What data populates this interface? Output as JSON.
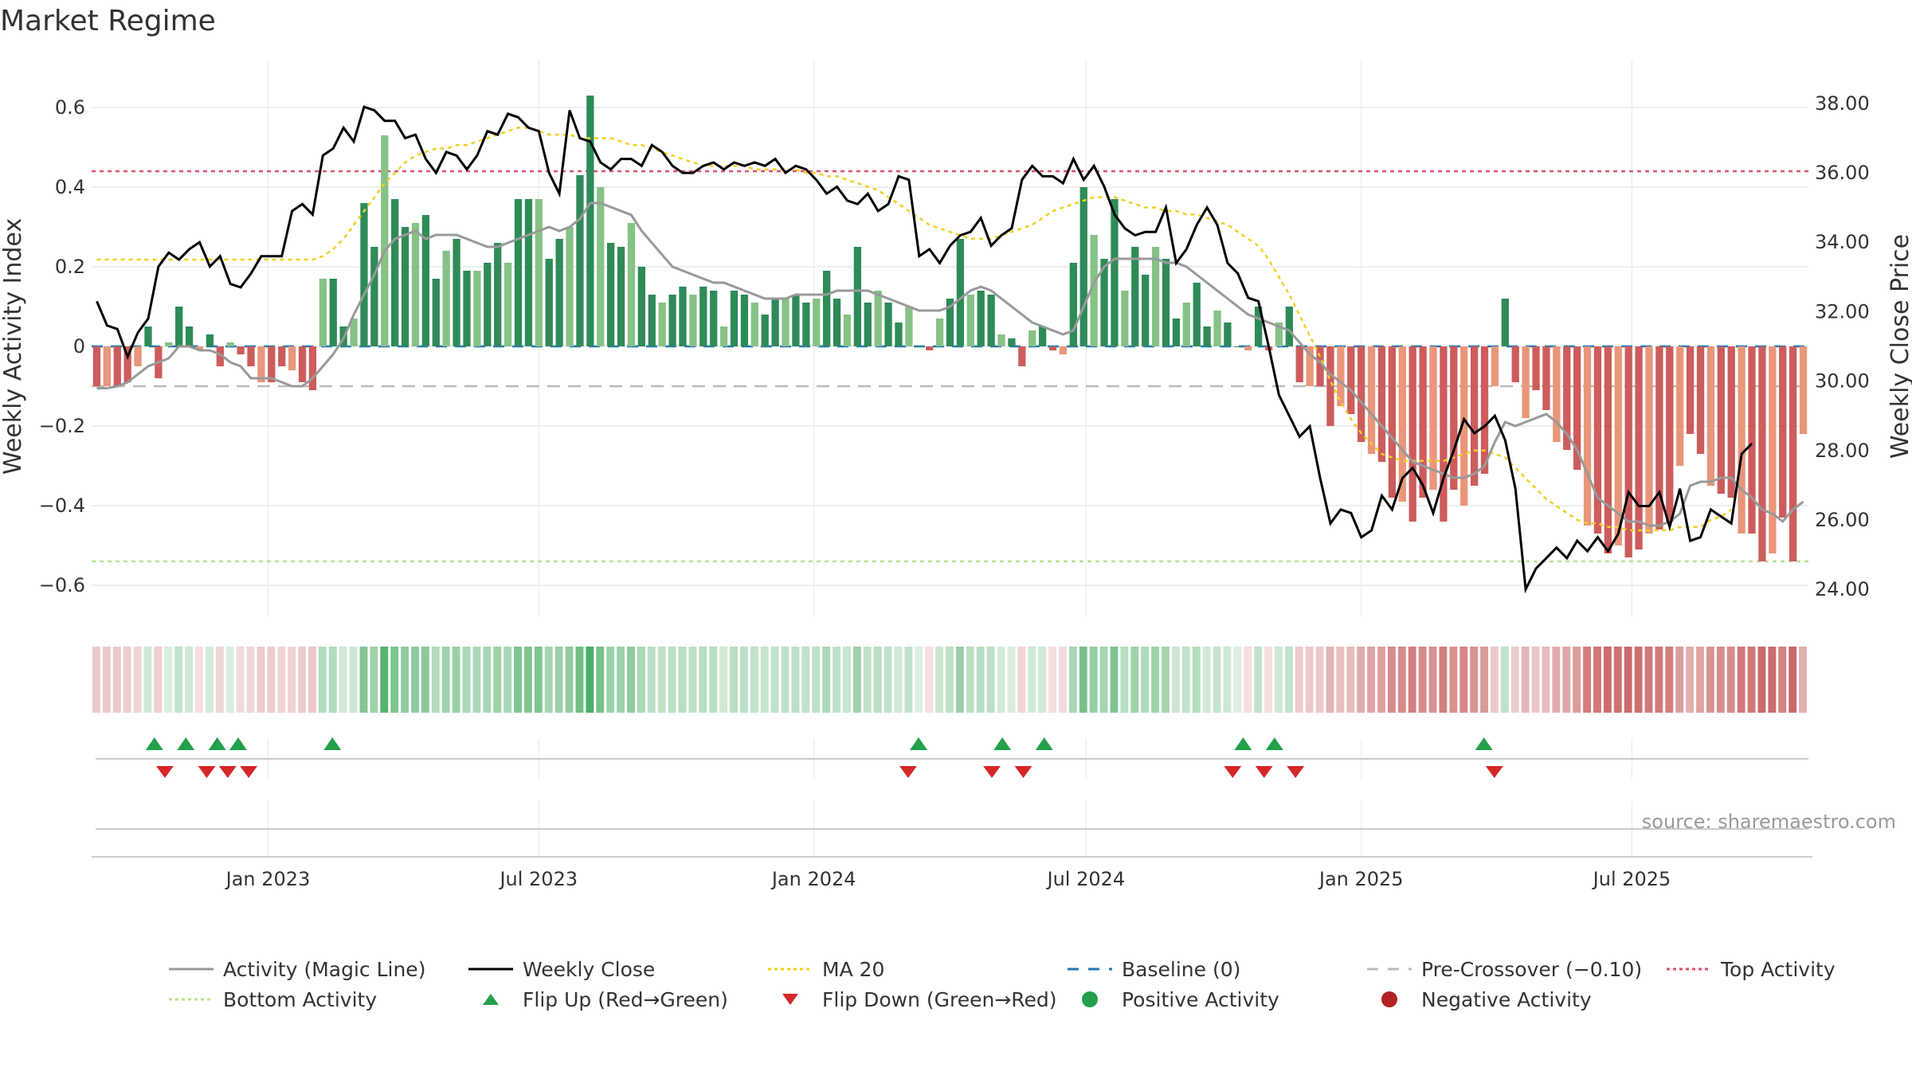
{
  "title": "Market Regime",
  "source_text": "source: sharemaestro.com",
  "colors": {
    "activity_line": "#999999",
    "weekly_close": "#000000",
    "ma20": "#f0d020",
    "baseline": "#1f77b4",
    "pre_crossover": "#bbbbbb",
    "top_activity": "#e05070",
    "bottom_activity": "#b8e08a",
    "bar_strong_green": "#2e8b57",
    "bar_light_green": "#86c286",
    "bar_strong_red": "#cd5c5c",
    "bar_light_red": "#e9967a",
    "flip_up": "#22a04b",
    "flip_down": "#d62728",
    "positive": "#22a04b",
    "negative": "#b22222"
  },
  "legend": [
    {
      "label": "Activity (Magic Line)",
      "symbol": "line-solid",
      "color": "#999999"
    },
    {
      "label": "Weekly Close",
      "symbol": "line-solid",
      "color": "#000000"
    },
    {
      "label": "MA 20",
      "symbol": "line-dotted",
      "color": "#f0d020"
    },
    {
      "label": "Baseline (0)",
      "symbol": "line-dashed",
      "color": "#1f77b4"
    },
    {
      "label": "Pre-Crossover (−0.10)",
      "symbol": "line-dashed",
      "color": "#bbbbbb"
    },
    {
      "label": "Top Activity",
      "symbol": "line-dotted",
      "color": "#e05070"
    },
    {
      "label": "Bottom Activity",
      "symbol": "line-dotted",
      "color": "#b8e08a"
    },
    {
      "label": "Flip Up (Red→Green)",
      "symbol": "triangle-up",
      "color": "#22a04b"
    },
    {
      "label": "Flip Down (Green→Red)",
      "symbol": "triangle-down",
      "color": "#d62728"
    },
    {
      "label": "Positive Activity",
      "symbol": "circle",
      "color": "#22a04b"
    },
    {
      "label": "Negative Activity",
      "symbol": "circle",
      "color": "#b22222"
    }
  ],
  "chart_data": {
    "type": "bar",
    "title": "Market Regime",
    "ylabel_left": "Weekly Activity Index",
    "ylabel_right": "Weekly Close Price",
    "ylim_left": [
      -0.68,
      0.68
    ],
    "ylim_right": [
      23.2,
      38.8
    ],
    "yticks_left": [
      "0.6",
      "0.4",
      "0.2",
      "0",
      "−0.2",
      "−0.4",
      "−0.6"
    ],
    "yticks_left_values": [
      0.6,
      0.4,
      0.2,
      0,
      -0.2,
      -0.4,
      -0.6
    ],
    "yticks_right": [
      "38.00",
      "36.00",
      "34.00",
      "32.00",
      "30.00",
      "28.00",
      "26.00",
      "24.00"
    ],
    "yticks_right_values": [
      38,
      36,
      34,
      32,
      30,
      28,
      26,
      24
    ],
    "x_start": "2022-09-05",
    "x_end": "2025-10-27",
    "xticks": [
      "Jan 2023",
      "Jul 2023",
      "Jan 2024",
      "Jul 2024",
      "Jan 2025",
      "Jul 2025"
    ],
    "xticks_dates": [
      "2023-01-01",
      "2023-07-01",
      "2024-01-01",
      "2024-07-01",
      "2025-01-01",
      "2025-07-01"
    ],
    "reference_lines": {
      "baseline": 0,
      "pre_crossover": -0.1,
      "top_activity": 0.44,
      "bottom_activity": -0.54
    },
    "activity_index": [
      -0.1,
      -0.1,
      -0.1,
      -0.09,
      -0.05,
      0.05,
      -0.08,
      0.01,
      0.1,
      0.05,
      -0.01,
      0.03,
      -0.05,
      0.01,
      -0.02,
      -0.05,
      -0.09,
      -0.09,
      -0.05,
      -0.06,
      -0.09,
      -0.11,
      0.17,
      0.17,
      0.05,
      0.07,
      0.36,
      0.25,
      0.53,
      0.37,
      0.3,
      0.31,
      0.33,
      0.17,
      0.24,
      0.27,
      0.19,
      0.19,
      0.21,
      0.26,
      0.21,
      0.37,
      0.37,
      0.37,
      0.22,
      0.27,
      0.3,
      0.43,
      0.63,
      0.4,
      0.26,
      0.25,
      0.31,
      0.2,
      0.13,
      0.11,
      0.13,
      0.15,
      0.13,
      0.15,
      0.14,
      0.05,
      0.14,
      0.13,
      0.11,
      0.08,
      0.12,
      0.12,
      0.13,
      0.11,
      0.12,
      0.19,
      0.12,
      0.08,
      0.25,
      0.11,
      0.14,
      0.11,
      0.06,
      0.1,
      0.0,
      -0.01,
      0.07,
      0.12,
      0.27,
      0.13,
      0.14,
      0.13,
      0.03,
      0.02,
      -0.05,
      0.04,
      0.05,
      -0.01,
      -0.02,
      0.21,
      0.4,
      0.28,
      0.22,
      0.37,
      0.14,
      0.25,
      0.18,
      0.25,
      0.22,
      0.07,
      0.11,
      0.16,
      0.05,
      0.09,
      0.06,
      0.0,
      -0.01,
      0.1,
      -0.01,
      0.06,
      0.1,
      -0.09,
      -0.1,
      -0.1,
      -0.2,
      -0.15,
      -0.17,
      -0.24,
      -0.27,
      -0.29,
      -0.38,
      -0.39,
      -0.44,
      -0.38,
      -0.36,
      -0.44,
      -0.36,
      -0.4,
      -0.35,
      -0.32,
      -0.1,
      0.12,
      -0.09,
      -0.18,
      -0.11,
      -0.16,
      -0.24,
      -0.26,
      -0.31,
      -0.45,
      -0.47,
      -0.52,
      -0.5,
      -0.53,
      -0.51,
      -0.47,
      -0.46,
      -0.44,
      -0.3,
      -0.22,
      -0.27,
      -0.35,
      -0.37,
      -0.38,
      -0.47,
      -0.47,
      -0.54,
      -0.52,
      -0.43,
      -0.54,
      -0.22
    ],
    "activity_line": [
      -0.105,
      -0.105,
      -0.1,
      -0.09,
      -0.07,
      -0.05,
      -0.04,
      -0.03,
      0.0,
      0.0,
      -0.01,
      -0.01,
      -0.02,
      -0.04,
      -0.05,
      -0.08,
      -0.08,
      -0.08,
      -0.09,
      -0.1,
      -0.1,
      -0.08,
      -0.05,
      -0.02,
      0.02,
      0.08,
      0.13,
      0.18,
      0.24,
      0.27,
      0.28,
      0.29,
      0.27,
      0.28,
      0.28,
      0.28,
      0.27,
      0.26,
      0.25,
      0.25,
      0.26,
      0.27,
      0.28,
      0.29,
      0.3,
      0.29,
      0.3,
      0.32,
      0.36,
      0.36,
      0.35,
      0.34,
      0.33,
      0.29,
      0.26,
      0.23,
      0.2,
      0.19,
      0.18,
      0.17,
      0.16,
      0.16,
      0.15,
      0.14,
      0.13,
      0.12,
      0.12,
      0.12,
      0.13,
      0.13,
      0.13,
      0.13,
      0.14,
      0.14,
      0.14,
      0.14,
      0.13,
      0.12,
      0.11,
      0.1,
      0.09,
      0.09,
      0.09,
      0.1,
      0.12,
      0.14,
      0.15,
      0.14,
      0.12,
      0.1,
      0.08,
      0.06,
      0.05,
      0.04,
      0.03,
      0.04,
      0.1,
      0.16,
      0.2,
      0.22,
      0.22,
      0.22,
      0.22,
      0.22,
      0.21,
      0.21,
      0.2,
      0.18,
      0.16,
      0.14,
      0.12,
      0.1,
      0.08,
      0.07,
      0.06,
      0.05,
      0.04,
      0.01,
      -0.02,
      -0.04,
      -0.07,
      -0.09,
      -0.11,
      -0.14,
      -0.17,
      -0.2,
      -0.23,
      -0.26,
      -0.29,
      -0.3,
      -0.31,
      -0.32,
      -0.33,
      -0.33,
      -0.32,
      -0.3,
      -0.24,
      -0.19,
      -0.2,
      -0.19,
      -0.18,
      -0.17,
      -0.19,
      -0.22,
      -0.26,
      -0.32,
      -0.38,
      -0.4,
      -0.42,
      -0.44,
      -0.44,
      -0.45,
      -0.45,
      -0.44,
      -0.42,
      -0.35,
      -0.34,
      -0.34,
      -0.33,
      -0.33,
      -0.36,
      -0.38,
      -0.41,
      -0.42,
      -0.44,
      -0.41,
      -0.39
    ],
    "weekly_close": [
      32.3,
      31.6,
      31.5,
      30.7,
      31.4,
      31.8,
      33.3,
      33.7,
      33.5,
      33.8,
      34.0,
      33.3,
      33.6,
      32.8,
      32.7,
      33.1,
      33.6,
      33.6,
      33.6,
      34.9,
      35.1,
      34.8,
      36.5,
      36.7,
      37.3,
      36.9,
      37.9,
      37.8,
      37.5,
      37.5,
      37.0,
      37.1,
      36.4,
      36.0,
      36.6,
      36.5,
      36.1,
      36.5,
      37.2,
      37.1,
      37.7,
      37.6,
      37.3,
      37.2,
      36.0,
      35.4,
      37.8,
      37.0,
      36.9,
      36.3,
      36.1,
      36.4,
      36.4,
      36.2,
      36.8,
      36.6,
      36.2,
      36.0,
      36.0,
      36.2,
      36.3,
      36.1,
      36.3,
      36.2,
      36.3,
      36.2,
      36.4,
      36.0,
      36.2,
      36.1,
      35.8,
      35.4,
      35.6,
      35.2,
      35.1,
      35.4,
      34.9,
      35.1,
      35.9,
      35.8,
      33.6,
      33.8,
      33.4,
      33.9,
      34.2,
      34.3,
      34.7,
      33.9,
      34.2,
      34.4,
      35.8,
      36.2,
      35.9,
      35.9,
      35.7,
      36.4,
      35.8,
      36.2,
      35.6,
      34.8,
      34.4,
      34.2,
      34.3,
      34.3,
      35.0,
      33.4,
      33.8,
      34.5,
      35.0,
      34.5,
      33.4,
      33.1,
      32.4,
      32.3,
      31.0,
      29.6,
      29.0,
      28.4,
      28.7,
      27.2,
      25.9,
      26.3,
      26.2,
      25.5,
      25.7,
      26.7,
      26.3,
      27.2,
      27.5,
      27.0,
      26.2,
      27.2,
      28.0,
      28.9,
      28.5,
      28.7,
      29.0,
      28.3,
      26.9,
      24.0,
      24.6,
      24.9,
      25.2,
      24.9,
      25.4,
      25.1,
      25.5,
      25.1,
      25.6,
      26.8,
      26.4,
      26.4,
      26.8,
      25.8,
      26.9,
      25.4,
      25.5,
      26.3,
      26.1,
      25.9,
      27.9,
      28.2
    ],
    "ma20": [
      33.5,
      33.5,
      33.5,
      33.5,
      33.5,
      33.5,
      33.5,
      33.5,
      33.5,
      33.5,
      33.5,
      33.5,
      33.5,
      33.5,
      33.5,
      33.5,
      33.5,
      33.5,
      33.5,
      33.5,
      33.5,
      33.5,
      33.6,
      33.8,
      34.1,
      34.5,
      34.9,
      35.3,
      35.7,
      36.0,
      36.3,
      36.5,
      36.6,
      36.7,
      36.7,
      36.8,
      36.8,
      36.9,
      37.0,
      37.1,
      37.2,
      37.3,
      37.3,
      37.2,
      37.1,
      37.1,
      37.1,
      37.0,
      37.0,
      37.0,
      37.0,
      36.9,
      36.8,
      36.8,
      36.7,
      36.6,
      36.5,
      36.4,
      36.3,
      36.2,
      36.2,
      36.2,
      36.2,
      36.2,
      36.1,
      36.1,
      36.1,
      36.1,
      36.1,
      36.0,
      36.0,
      35.9,
      35.9,
      35.8,
      35.7,
      35.6,
      35.5,
      35.3,
      35.1,
      34.9,
      34.7,
      34.5,
      34.4,
      34.3,
      34.2,
      34.1,
      34.1,
      34.1,
      34.2,
      34.3,
      34.4,
      34.5,
      34.7,
      34.9,
      35.0,
      35.1,
      35.2,
      35.3,
      35.3,
      35.3,
      35.2,
      35.1,
      35.0,
      35.0,
      34.9,
      34.9,
      34.8,
      34.8,
      34.7,
      34.6,
      34.5,
      34.3,
      34.1,
      33.9,
      33.5,
      33.0,
      32.5,
      31.9,
      31.3,
      30.7,
      30.0,
      29.4,
      28.9,
      28.5,
      28.2,
      27.9,
      27.8,
      27.7,
      27.7,
      27.7,
      27.7,
      27.7,
      27.8,
      27.9,
      28.0,
      28.0,
      27.9,
      27.8,
      27.5,
      27.2,
      26.9,
      26.6,
      26.4,
      26.2,
      26.0,
      25.9,
      25.9,
      25.8,
      25.8,
      25.7,
      25.7,
      25.7,
      25.7,
      25.7,
      25.8,
      25.8,
      25.8,
      26.0,
      26.1,
      26.3
    ],
    "flips_up": [
      "2022-10-17",
      "2022-11-07",
      "2022-11-28",
      "2022-12-12",
      "2023-02-13",
      "2024-03-11",
      "2024-05-06",
      "2024-06-03",
      "2024-10-14",
      "2024-11-04",
      "2025-03-24"
    ],
    "flips_down": [
      "2022-10-24",
      "2022-11-21",
      "2022-12-05",
      "2022-12-19",
      "2024-03-04",
      "2024-04-29",
      "2024-05-20",
      "2024-10-07",
      "2024-10-28",
      "2024-11-18",
      "2025-03-31"
    ]
  }
}
